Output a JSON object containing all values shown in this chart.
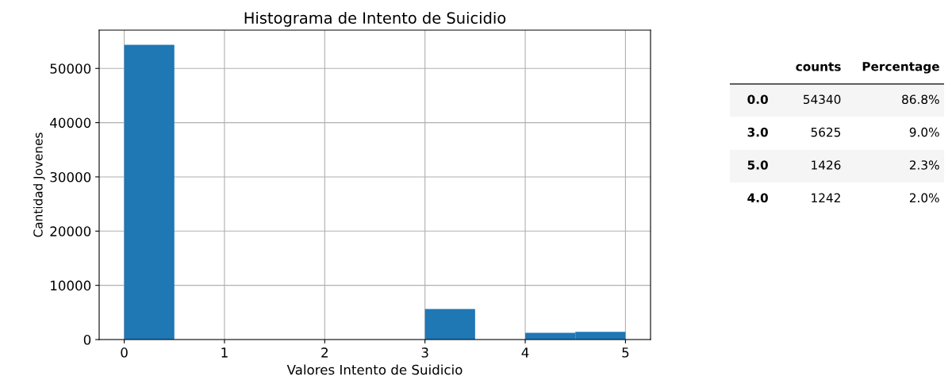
{
  "chart_data": [
    {
      "type": "histogram",
      "title": "Histograma de Intento de Suicidio",
      "xlabel": "Valores Intento de Suidicio",
      "ylabel": "Cantidad Jovenes",
      "bins": [
        0,
        0.5,
        1,
        1.5,
        2,
        2.5,
        3,
        3.5,
        4,
        4.5,
        5
      ],
      "values": [
        54340,
        0,
        0,
        0,
        0,
        0,
        5625,
        0,
        1242,
        1426
      ],
      "color": "#1f77b4",
      "xlim": [
        -0.25,
        5.25
      ],
      "xticks": [
        0,
        1,
        2,
        3,
        4,
        5
      ],
      "ylim": [
        0,
        57057
      ],
      "yticks": [
        0,
        10000,
        20000,
        30000,
        40000,
        50000
      ],
      "grid": true
    },
    {
      "type": "other",
      "annotations": [
        "counts",
        "Percentage",
        "0.0",
        "54340",
        "86.8%",
        "3.0",
        "5625",
        "9.0%",
        "5.0",
        "1426",
        "2.3%",
        "4.0",
        "1242",
        "2.0%"
      ]
    }
  ]
}
